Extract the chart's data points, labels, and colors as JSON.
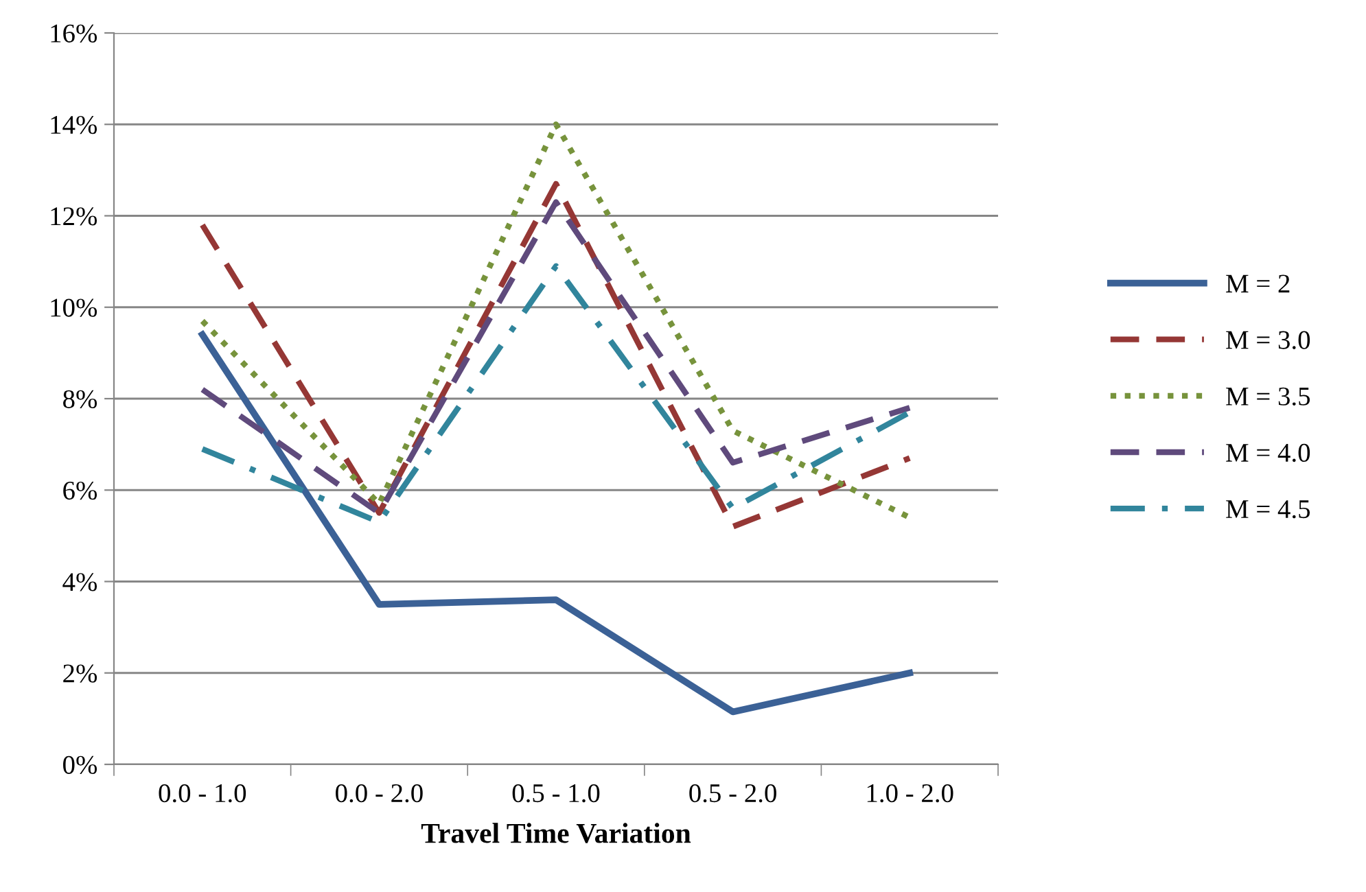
{
  "chart_data": {
    "type": "line",
    "xlabel": "Travel Time Variation",
    "categories": [
      "0.0 - 1.0",
      "0.0 - 2.0",
      "0.5 - 1.0",
      "0.5 - 2.0",
      "1.0 - 2.0"
    ],
    "series": [
      {
        "name": "M = 2",
        "color": "#3b6196",
        "line_style": "solid",
        "values": [
          9.4,
          3.5,
          3.6,
          1.15,
          2.0
        ]
      },
      {
        "name": "M = 3.0",
        "color": "#953735",
        "line_style": "dashed",
        "values": [
          11.8,
          5.5,
          12.7,
          5.2,
          6.7
        ]
      },
      {
        "name": "M = 3.5",
        "color": "#77933c",
        "line_style": "dotted",
        "values": [
          9.7,
          5.7,
          14.0,
          7.3,
          5.4
        ]
      },
      {
        "name": "M = 4.0",
        "color": "#5f4a7c",
        "line_style": "dashed",
        "values": [
          8.2,
          5.5,
          12.3,
          6.6,
          7.8
        ]
      },
      {
        "name": "M = 4.5",
        "color": "#31859c",
        "line_style": "dashdot",
        "values": [
          6.9,
          5.3,
          10.9,
          5.6,
          7.7
        ]
      }
    ],
    "ylim": [
      0,
      16
    ],
    "yticks": [
      {
        "value": 0,
        "label": "0%"
      },
      {
        "value": 2,
        "label": "2%"
      },
      {
        "value": 4,
        "label": "4%"
      },
      {
        "value": 6,
        "label": "6%"
      },
      {
        "value": 8,
        "label": "8%"
      },
      {
        "value": 10,
        "label": "10%"
      },
      {
        "value": 12,
        "label": "12%"
      },
      {
        "value": 14,
        "label": "14%"
      },
      {
        "value": 16,
        "label": "16%"
      }
    ],
    "grid": "y",
    "legend": "right",
    "marker": "none"
  }
}
